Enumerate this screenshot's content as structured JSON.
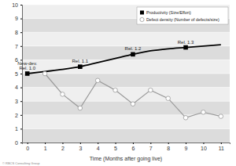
{
  "chart_data": {
    "type": "line",
    "x_label": "Time (Months after going live)",
    "footnote": "© RBCS Consulting Group",
    "x": [
      0,
      1,
      2,
      3,
      4,
      5,
      6,
      7,
      8,
      9,
      10,
      11
    ],
    "series": [
      {
        "name": "Productivity (Size/Effort)",
        "color": "#000000",
        "marker": "square",
        "line_style": "solid",
        "values": [
          5.0,
          5.15,
          5.3,
          5.5,
          5.8,
          6.1,
          6.4,
          6.65,
          6.8,
          6.9,
          7.0,
          7.1
        ]
      },
      {
        "name": "Defect density (Number of defects/size)",
        "color": "#999999",
        "marker": "circle",
        "line_style": "solid",
        "values": [
          null,
          5.0,
          3.5,
          2.5,
          4.5,
          3.8,
          2.8,
          3.8,
          3.2,
          1.8,
          2.2,
          1.9
        ]
      }
    ],
    "annotations": [
      {
        "text": [
          "New-dev.",
          "Rel. 1.0"
        ],
        "x": 0
      },
      {
        "text": [
          "Rel. 1.1"
        ],
        "x": 3
      },
      {
        "text": [
          "Rel. 1.2"
        ],
        "x": 6
      },
      {
        "text": [
          "Rel. 1.3"
        ],
        "x": 9
      }
    ],
    "xlim": [
      -0.3,
      11.5
    ],
    "xticks": [
      0,
      1,
      2,
      3,
      4,
      5,
      6,
      7,
      8,
      9,
      10,
      11
    ],
    "ylim": [
      0,
      10
    ],
    "yticks": [
      0,
      1,
      2,
      3,
      4,
      5,
      6,
      7,
      8,
      9,
      10
    ],
    "grid": true,
    "legend": "upper right"
  }
}
